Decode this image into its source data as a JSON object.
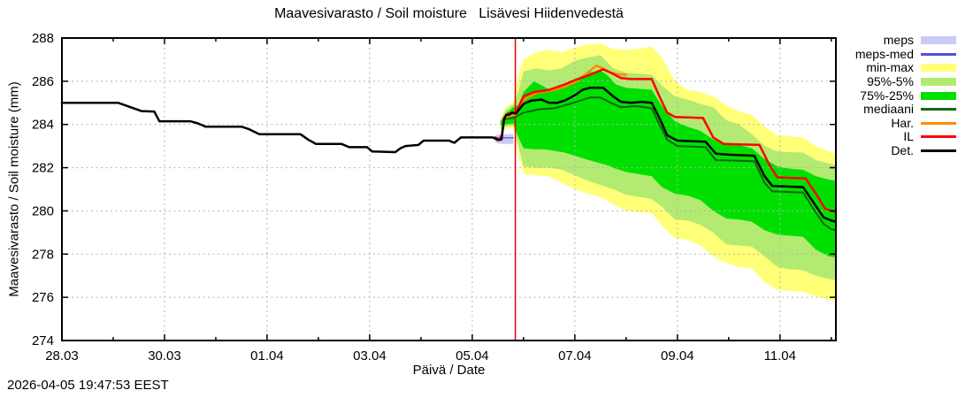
{
  "timestamp": "2026-04-05 19:47:53 EEST",
  "legend": {
    "items": [
      {
        "id": "meps",
        "label": "meps",
        "type": "box",
        "color": "#cbcbf8"
      },
      {
        "id": "meps-med",
        "label": "meps-med",
        "type": "line",
        "color": "#5050e0"
      },
      {
        "id": "min-max",
        "label": "min-max",
        "type": "box",
        "color": "#ffff78"
      },
      {
        "id": "p95-5",
        "label": "95%-5%",
        "type": "box",
        "color": "#b2ea72"
      },
      {
        "id": "p75-25",
        "label": "75%-25%",
        "type": "box",
        "color": "#00e000"
      },
      {
        "id": "mediaani",
        "label": "mediaani",
        "type": "line",
        "color": "#156415"
      },
      {
        "id": "har",
        "label": "Har.",
        "type": "line",
        "color": "#ff8c00"
      },
      {
        "id": "il",
        "label": "IL",
        "type": "line",
        "color": "#ff0000"
      },
      {
        "id": "det",
        "label": "Det.",
        "type": "line",
        "color": "#000000"
      }
    ]
  },
  "chart_data": {
    "type": "line",
    "title": "Maavesivarasto / Soil moisture   Lisävesi Hiidenvedestä",
    "xlabel": "Päivä / Date",
    "ylabel": "Maavesivarasto / Soil moisture (mm)",
    "ylim": [
      274,
      288
    ],
    "xlim_days": [
      0,
      15.09
    ],
    "grid": true,
    "grid_color": "#b3b3b3",
    "frame_color": "#000000",
    "x_ticks": [
      {
        "day": 0,
        "label": "28.03"
      },
      {
        "day": 2,
        "label": "30.03"
      },
      {
        "day": 4,
        "label": "01.04"
      },
      {
        "day": 6,
        "label": "03.04"
      },
      {
        "day": 8,
        "label": "05.04"
      },
      {
        "day": 10,
        "label": "07.04"
      },
      {
        "day": 12,
        "label": "09.04"
      },
      {
        "day": 14,
        "label": "11.04"
      }
    ],
    "x_minor_days": [
      1,
      3,
      5,
      7,
      9,
      11,
      13,
      15
    ],
    "y_ticks": [
      274,
      276,
      278,
      280,
      282,
      284,
      286,
      288
    ],
    "forecast_start_day": 8.84,
    "now_line_color": "#dd0000",
    "bands": [
      {
        "id": "meps",
        "name": "meps",
        "color": "#cbcbf8",
        "points": [
          [
            8.45,
            283.15,
            283.5
          ],
          [
            8.6,
            283.1,
            283.55
          ],
          [
            8.8,
            283.1,
            283.55
          ]
        ]
      },
      {
        "id": "min-max",
        "name": "min-max",
        "color": "#ffff78",
        "points": [
          [
            8.55,
            283.7,
            284.3
          ],
          [
            8.65,
            283.8,
            284.8
          ],
          [
            8.8,
            283.85,
            285.05
          ],
          [
            8.9,
            282.6,
            286.3
          ],
          [
            9.0,
            281.7,
            287.0
          ],
          [
            9.25,
            281.65,
            287.35
          ],
          [
            9.5,
            281.6,
            287.45
          ],
          [
            9.75,
            281.3,
            287.35
          ],
          [
            10.0,
            281.0,
            287.55
          ],
          [
            10.25,
            280.8,
            287.7
          ],
          [
            10.5,
            280.65,
            287.75
          ],
          [
            10.75,
            280.3,
            287.5
          ],
          [
            11.0,
            280.0,
            287.45
          ],
          [
            11.25,
            279.95,
            287.5
          ],
          [
            11.5,
            279.9,
            287.6
          ],
          [
            11.7,
            279.3,
            287.1
          ],
          [
            11.95,
            278.75,
            286.0
          ],
          [
            12.2,
            278.65,
            285.6
          ],
          [
            12.45,
            278.4,
            285.5
          ],
          [
            12.7,
            277.9,
            285.3
          ],
          [
            12.95,
            277.6,
            284.9
          ],
          [
            13.2,
            277.4,
            284.6
          ],
          [
            13.45,
            277.35,
            284.45
          ],
          [
            13.7,
            276.7,
            283.9
          ],
          [
            13.95,
            276.35,
            283.5
          ],
          [
            14.2,
            276.3,
            283.45
          ],
          [
            14.45,
            276.25,
            283.4
          ],
          [
            14.7,
            276.05,
            283.0
          ],
          [
            14.95,
            275.9,
            282.75
          ],
          [
            15.09,
            275.85,
            282.65
          ]
        ]
      },
      {
        "id": "p95-5",
        "name": "95%-5%",
        "color": "#b2ea72",
        "points": [
          [
            8.55,
            283.8,
            284.2
          ],
          [
            8.65,
            283.9,
            284.65
          ],
          [
            8.8,
            283.95,
            284.95
          ],
          [
            8.9,
            283.0,
            285.5
          ],
          [
            9.0,
            282.05,
            286.45
          ],
          [
            9.25,
            282.0,
            286.6
          ],
          [
            9.5,
            282.0,
            286.5
          ],
          [
            9.75,
            281.9,
            286.6
          ],
          [
            10.0,
            281.65,
            286.95
          ],
          [
            10.25,
            281.4,
            287.1
          ],
          [
            10.5,
            281.2,
            287.2
          ],
          [
            10.75,
            281.0,
            286.6
          ],
          [
            11.0,
            280.75,
            286.4
          ],
          [
            11.25,
            280.65,
            286.35
          ],
          [
            11.5,
            280.55,
            286.3
          ],
          [
            11.7,
            280.2,
            285.8
          ],
          [
            11.95,
            279.6,
            285.3
          ],
          [
            12.2,
            279.55,
            285.15
          ],
          [
            12.45,
            279.35,
            284.95
          ],
          [
            12.7,
            279.0,
            284.8
          ],
          [
            12.95,
            278.45,
            284.2
          ],
          [
            13.2,
            278.4,
            284.0
          ],
          [
            13.45,
            278.35,
            283.55
          ],
          [
            13.7,
            277.9,
            283.0
          ],
          [
            13.95,
            277.4,
            282.75
          ],
          [
            14.2,
            277.3,
            282.72
          ],
          [
            14.45,
            277.25,
            282.7
          ],
          [
            14.7,
            277.0,
            282.35
          ],
          [
            14.95,
            276.85,
            282.2
          ],
          [
            15.09,
            276.8,
            282.1
          ]
        ]
      },
      {
        "id": "p75-25",
        "name": "75%-25%",
        "color": "#00e000",
        "points": [
          [
            8.55,
            283.95,
            284.15
          ],
          [
            8.65,
            284.0,
            284.5
          ],
          [
            8.8,
            284.05,
            284.8
          ],
          [
            8.9,
            283.4,
            284.9
          ],
          [
            9.0,
            282.9,
            285.5
          ],
          [
            9.2,
            282.85,
            286.0
          ],
          [
            9.4,
            282.85,
            285.75
          ],
          [
            9.55,
            282.8,
            285.55
          ],
          [
            9.8,
            282.7,
            285.7
          ],
          [
            10.0,
            282.55,
            286.05
          ],
          [
            10.2,
            282.4,
            286.35
          ],
          [
            10.5,
            282.2,
            286.5
          ],
          [
            10.65,
            282.1,
            286.25
          ],
          [
            10.8,
            281.95,
            285.85
          ],
          [
            11.0,
            281.8,
            285.7
          ],
          [
            11.25,
            281.7,
            285.65
          ],
          [
            11.5,
            281.6,
            285.6
          ],
          [
            11.7,
            281.1,
            284.85
          ],
          [
            11.95,
            280.8,
            284.15
          ],
          [
            12.2,
            280.7,
            283.9
          ],
          [
            12.45,
            280.5,
            283.7
          ],
          [
            12.7,
            280.0,
            283.3
          ],
          [
            12.95,
            279.65,
            283.1
          ],
          [
            13.2,
            279.6,
            283.05
          ],
          [
            13.45,
            279.5,
            282.9
          ],
          [
            13.7,
            279.1,
            282.4
          ],
          [
            13.95,
            278.9,
            282.05
          ],
          [
            14.2,
            278.85,
            281.95
          ],
          [
            14.45,
            278.8,
            281.9
          ],
          [
            14.7,
            278.2,
            281.6
          ],
          [
            14.95,
            277.9,
            281.45
          ],
          [
            15.09,
            277.85,
            281.4
          ]
        ]
      }
    ],
    "series": [
      {
        "id": "meps-med",
        "name": "meps-med",
        "color": "#5050e0",
        "width": 1.2,
        "points": [
          [
            8.45,
            283.38
          ],
          [
            8.8,
            283.38
          ]
        ]
      },
      {
        "id": "mediaani",
        "name": "mediaani",
        "color": "#156415",
        "width": 2,
        "points": [
          [
            8.62,
            284.25
          ],
          [
            8.8,
            284.3
          ],
          [
            9.0,
            284.55
          ],
          [
            9.3,
            284.7
          ],
          [
            9.6,
            284.75
          ],
          [
            9.9,
            284.95
          ],
          [
            10.1,
            285.1
          ],
          [
            10.3,
            285.25
          ],
          [
            10.5,
            285.25
          ],
          [
            10.7,
            285.0
          ],
          [
            10.9,
            284.8
          ],
          [
            11.2,
            284.85
          ],
          [
            11.5,
            284.75
          ],
          [
            11.65,
            284.0
          ],
          [
            11.8,
            283.3
          ],
          [
            12.0,
            283.0
          ],
          [
            12.55,
            282.95
          ],
          [
            12.75,
            282.35
          ],
          [
            13.5,
            282.3
          ],
          [
            13.7,
            281.3
          ],
          [
            13.85,
            280.9
          ],
          [
            14.45,
            280.85
          ],
          [
            14.65,
            280.1
          ],
          [
            14.85,
            279.4
          ],
          [
            15.0,
            279.15
          ],
          [
            15.09,
            279.1
          ]
        ]
      },
      {
        "id": "har",
        "name": "Har.",
        "color": "#ff8c00",
        "width": 2.5,
        "points": [
          [
            8.6,
            284.25
          ],
          [
            8.72,
            284.4
          ],
          [
            8.85,
            284.45
          ],
          [
            9.0,
            285.15
          ],
          [
            9.25,
            285.45
          ],
          [
            9.5,
            285.55
          ],
          [
            9.75,
            285.7
          ],
          [
            10.0,
            285.95
          ],
          [
            10.2,
            286.3
          ],
          [
            10.42,
            286.72
          ],
          [
            10.55,
            286.6
          ],
          [
            10.7,
            286.4
          ],
          [
            10.85,
            286.32
          ],
          [
            11.0,
            286.3
          ]
        ]
      },
      {
        "id": "il",
        "name": "IL",
        "color": "#ff0000",
        "width": 2.5,
        "points": [
          [
            8.45,
            283.4
          ],
          [
            8.52,
            283.28
          ],
          [
            8.58,
            283.5
          ],
          [
            8.62,
            284.3
          ],
          [
            8.7,
            284.5
          ],
          [
            8.85,
            284.55
          ],
          [
            9.0,
            285.3
          ],
          [
            9.2,
            285.5
          ],
          [
            9.5,
            285.6
          ],
          [
            9.8,
            285.85
          ],
          [
            10.0,
            286.05
          ],
          [
            10.3,
            286.3
          ],
          [
            10.55,
            286.55
          ],
          [
            10.7,
            286.4
          ],
          [
            10.9,
            286.15
          ],
          [
            11.1,
            286.1
          ],
          [
            11.5,
            286.1
          ],
          [
            11.65,
            285.3
          ],
          [
            11.8,
            284.55
          ],
          [
            11.95,
            284.35
          ],
          [
            12.5,
            284.3
          ],
          [
            12.7,
            283.4
          ],
          [
            12.9,
            283.1
          ],
          [
            13.6,
            283.05
          ],
          [
            13.8,
            282.1
          ],
          [
            13.95,
            281.55
          ],
          [
            14.5,
            281.5
          ],
          [
            14.7,
            280.8
          ],
          [
            14.88,
            280.1
          ],
          [
            15.0,
            280.0
          ],
          [
            15.09,
            279.95
          ]
        ]
      },
      {
        "id": "det",
        "name": "Det.",
        "color": "#000000",
        "width": 2.5,
        "points": [
          [
            0,
            285.0
          ],
          [
            1.1,
            285.0
          ],
          [
            1.55,
            284.62
          ],
          [
            1.8,
            284.6
          ],
          [
            1.9,
            284.15
          ],
          [
            2.5,
            284.15
          ],
          [
            2.65,
            284.05
          ],
          [
            2.8,
            283.9
          ],
          [
            3.5,
            283.9
          ],
          [
            3.65,
            283.78
          ],
          [
            3.85,
            283.55
          ],
          [
            4.65,
            283.55
          ],
          [
            4.8,
            283.3
          ],
          [
            4.95,
            283.1
          ],
          [
            5.45,
            283.1
          ],
          [
            5.6,
            282.95
          ],
          [
            5.95,
            282.95
          ],
          [
            6.05,
            282.75
          ],
          [
            6.5,
            282.72
          ],
          [
            6.6,
            282.9
          ],
          [
            6.7,
            283.0
          ],
          [
            6.95,
            283.05
          ],
          [
            7.05,
            283.25
          ],
          [
            7.55,
            283.25
          ],
          [
            7.65,
            283.15
          ],
          [
            7.78,
            283.4
          ],
          [
            8.4,
            283.4
          ],
          [
            8.5,
            283.28
          ],
          [
            8.57,
            283.3
          ],
          [
            8.62,
            284.2
          ],
          [
            8.66,
            284.45
          ],
          [
            8.72,
            284.45
          ],
          [
            8.78,
            284.55
          ],
          [
            8.85,
            284.5
          ],
          [
            9.0,
            284.95
          ],
          [
            9.15,
            285.1
          ],
          [
            9.35,
            285.15
          ],
          [
            9.5,
            285.0
          ],
          [
            9.65,
            285.0
          ],
          [
            9.8,
            285.1
          ],
          [
            10.0,
            285.35
          ],
          [
            10.15,
            285.6
          ],
          [
            10.3,
            285.7
          ],
          [
            10.55,
            285.7
          ],
          [
            10.75,
            285.3
          ],
          [
            10.9,
            285.05
          ],
          [
            11.1,
            285.0
          ],
          [
            11.3,
            285.05
          ],
          [
            11.5,
            285.0
          ],
          [
            11.65,
            284.3
          ],
          [
            11.8,
            283.5
          ],
          [
            12.0,
            283.25
          ],
          [
            12.55,
            283.2
          ],
          [
            12.75,
            282.65
          ],
          [
            13.0,
            282.6
          ],
          [
            13.5,
            282.55
          ],
          [
            13.7,
            281.6
          ],
          [
            13.85,
            281.15
          ],
          [
            14.45,
            281.1
          ],
          [
            14.65,
            280.4
          ],
          [
            14.85,
            279.7
          ],
          [
            15.0,
            279.55
          ],
          [
            15.09,
            279.5
          ]
        ]
      }
    ]
  }
}
